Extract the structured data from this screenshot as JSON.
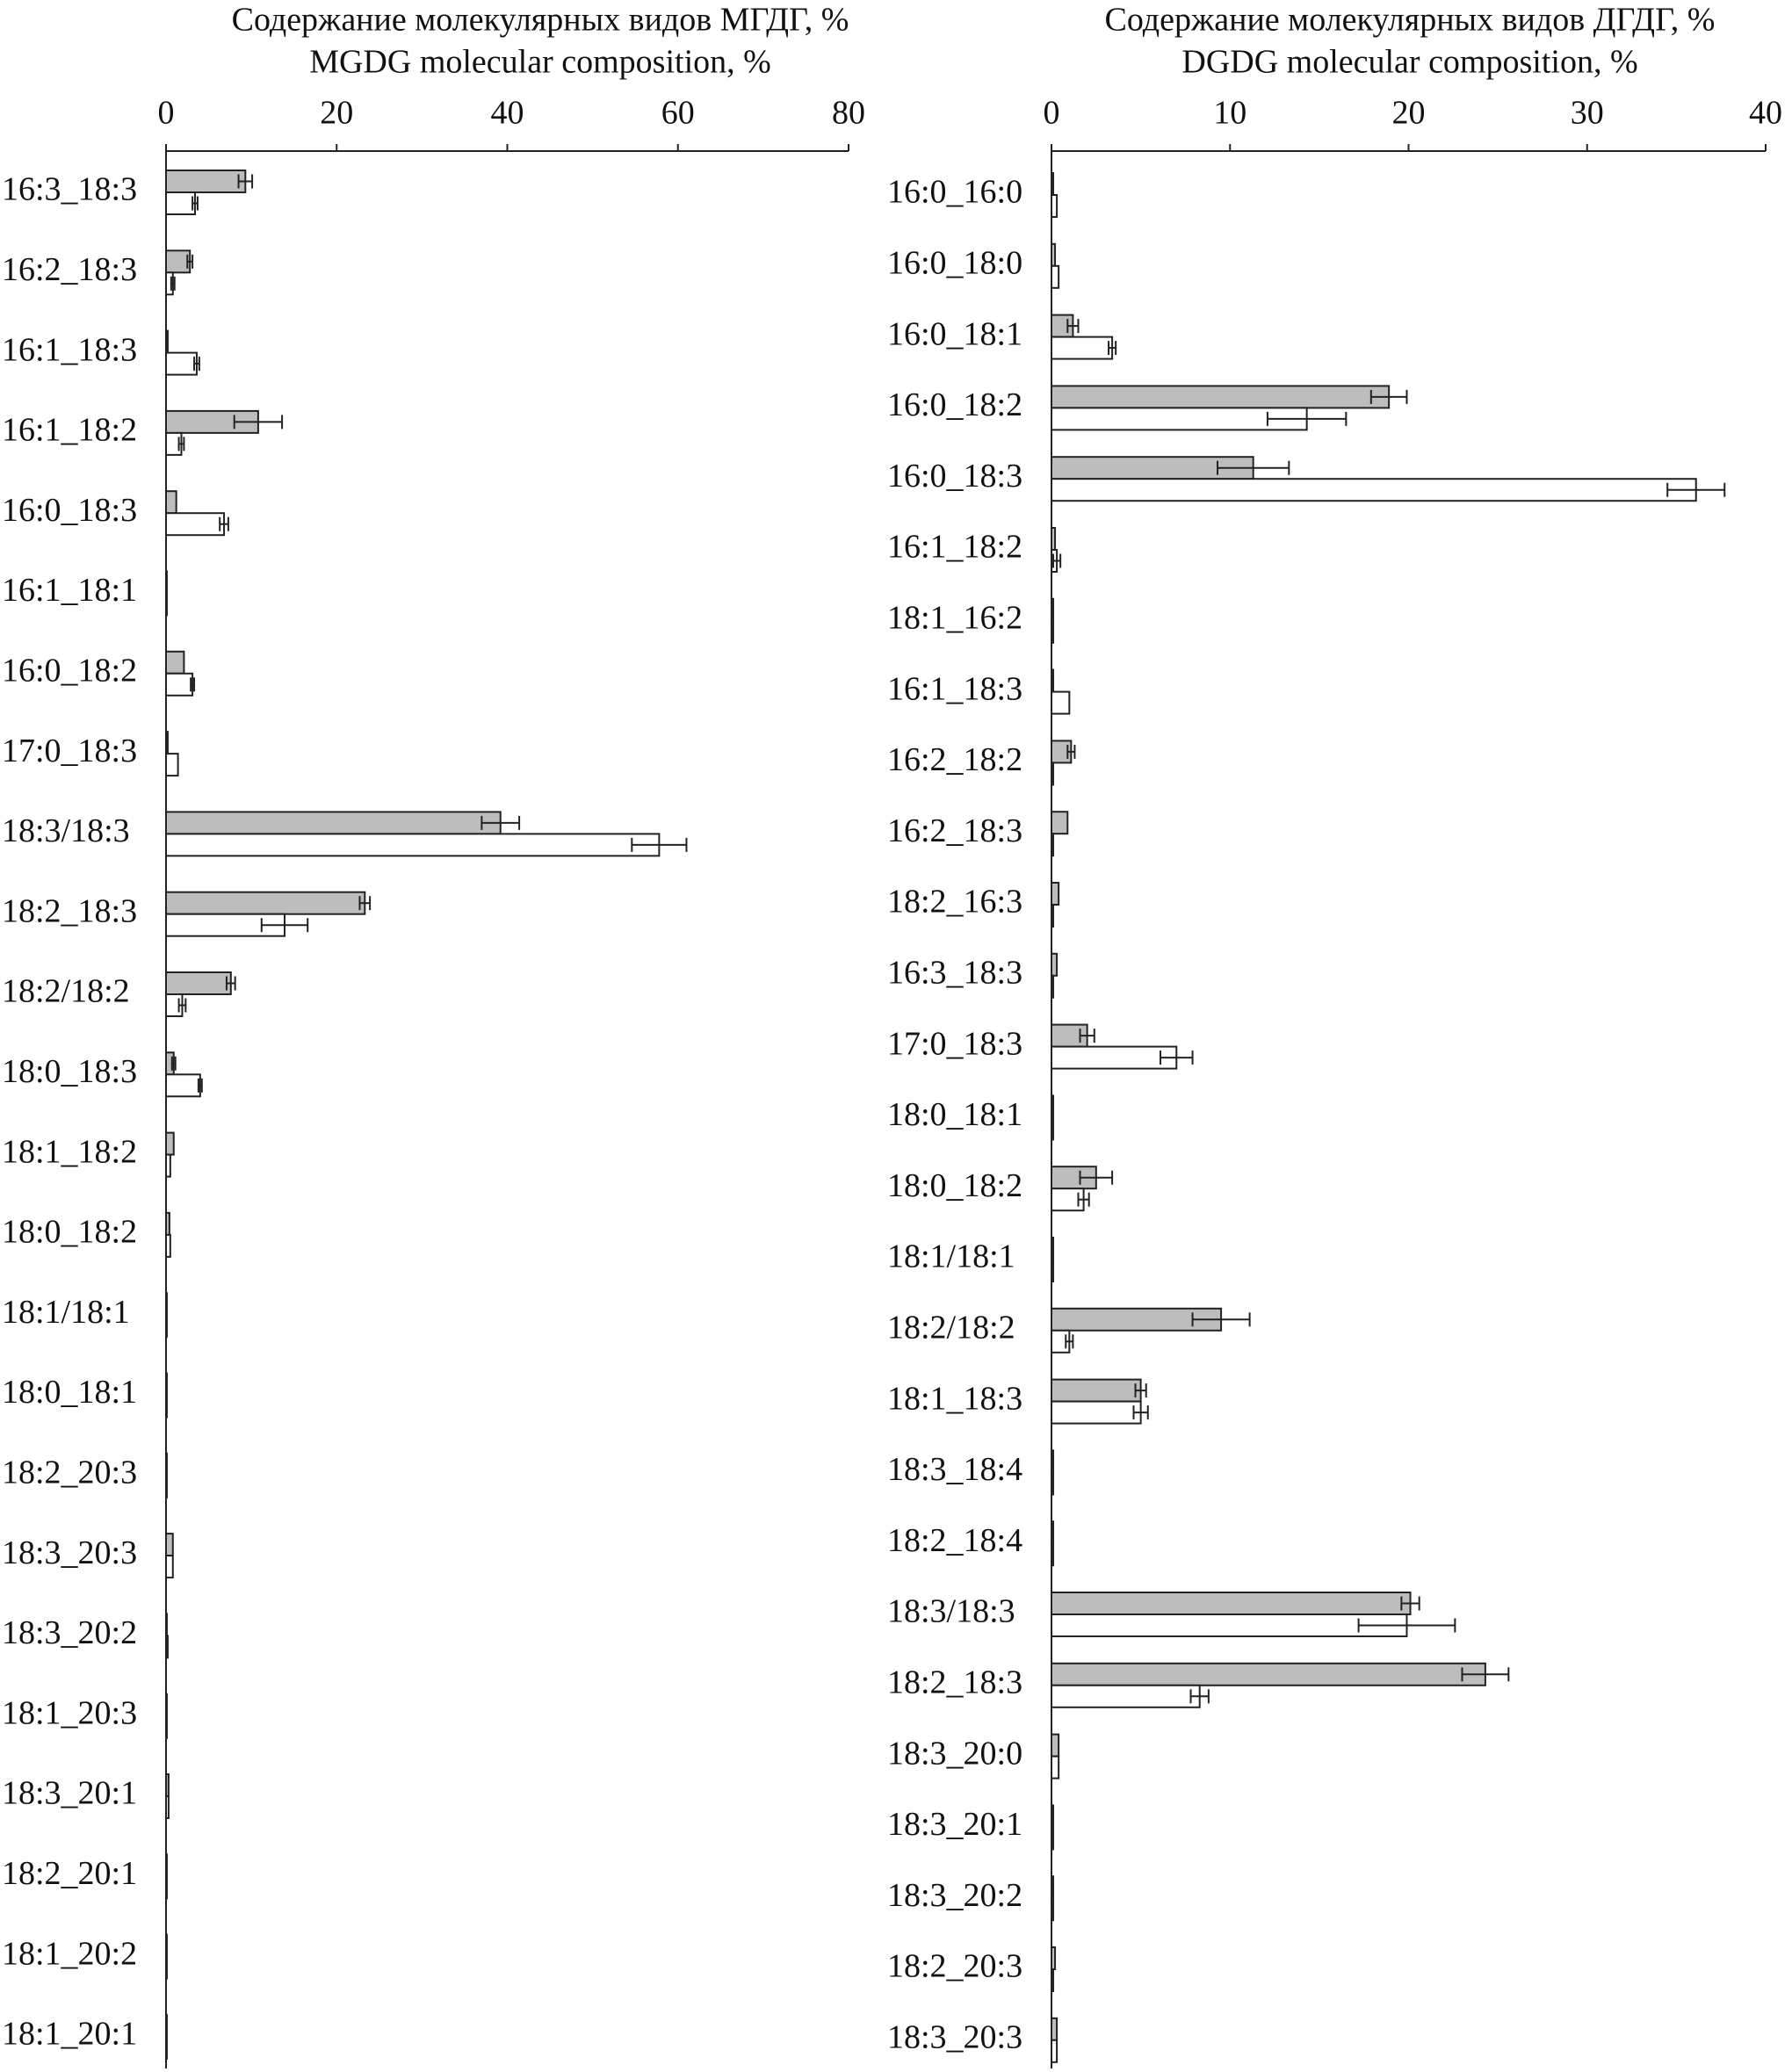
{
  "chart_data": [
    {
      "type": "bar",
      "orientation": "horizontal",
      "title": "Содержание  молекулярных видов МГДГ, %",
      "subtitle": "MGDG molecular composition, %",
      "categories": [
        "16:3_18:3",
        "16:2_18:3",
        "16:1_18:3",
        "16:1_18:2",
        "16:0_18:3",
        "16:1_18:1",
        "16:0_18:2",
        "17:0_18:3",
        "18:3/18:3",
        "18:2_18:3",
        "18:2/18:2",
        "18:0_18:3",
        "18:1_18:2",
        "18:0_18:2",
        "18:1/18:1",
        "18:0_18:1",
        "18:2_20:3",
        "18:3_20:3",
        "18:3_20:2",
        "18:1_20:3",
        "18:3_20:1",
        "18:2_20:1",
        "18:1_20:2",
        "18:1_20:1"
      ],
      "series": [
        {
          "color": "#bdbdbd",
          "values": [
            9.3,
            2.8,
            0.2,
            10.8,
            1.2,
            0.1,
            2.1,
            0.2,
            39.2,
            23.3,
            7.6,
            0.9,
            0.9,
            0.4,
            0.1,
            0.1,
            0.1,
            0.8,
            0.1,
            0.1,
            0.3,
            0.1,
            0.1,
            0.1
          ],
          "errors": [
            0.8,
            0.3,
            null,
            2.8,
            null,
            null,
            null,
            null,
            2.2,
            0.6,
            0.5,
            0.2,
            null,
            null,
            null,
            null,
            null,
            null,
            null,
            null,
            null,
            null,
            null,
            null
          ]
        },
        {
          "color": "#ffffff",
          "values": [
            3.4,
            0.8,
            3.6,
            1.8,
            6.8,
            0.1,
            3.1,
            1.4,
            57.8,
            13.9,
            1.9,
            4.0,
            0.5,
            0.5,
            0.1,
            0.1,
            0.1,
            0.8,
            0.2,
            0.1,
            0.3,
            0.1,
            0.1,
            0.1
          ],
          "errors": [
            0.3,
            0.2,
            0.3,
            0.3,
            0.5,
            null,
            0.2,
            null,
            3.2,
            2.7,
            0.4,
            0.2,
            null,
            null,
            null,
            null,
            null,
            null,
            null,
            null,
            null,
            null,
            null,
            null
          ]
        }
      ],
      "xlim": [
        0,
        80
      ],
      "xticks": [
        0,
        20,
        40,
        60,
        80
      ]
    },
    {
      "type": "bar",
      "orientation": "horizontal",
      "title": "Содержание  молекулярных видов ДГДГ, %",
      "subtitle": "DGDG molecular composition, %",
      "categories": [
        "16:0_16:0",
        "16:0_18:0",
        "16:0_18:1",
        "16:0_18:2",
        "16:0_18:3",
        "16:1_18:2",
        "18:1_16:2",
        "16:1_18:3",
        "16:2_18:2",
        "16:2_18:3",
        "18:2_16:3",
        "16:3_18:3",
        "17:0_18:3",
        "18:0_18:1",
        "18:0_18:2",
        "18:1/18:1",
        "18:2/18:2",
        "18:1_18:3",
        "18:3_18:4",
        "18:2_18:4",
        "18:3/18:3",
        "18:2_18:3",
        "18:3_20:0",
        "18:3_20:1",
        "18:3_20:2",
        "18:2_20:3",
        "18:3_20:3"
      ],
      "series": [
        {
          "color": "#bdbdbd",
          "values": [
            0.1,
            0.2,
            1.2,
            18.9,
            11.3,
            0.2,
            0.1,
            0.1,
            1.1,
            0.9,
            0.4,
            0.3,
            2.0,
            0.1,
            2.5,
            0.1,
            9.5,
            5.0,
            0.1,
            0.1,
            20.1,
            24.3,
            0.4,
            0.1,
            0.1,
            0.2,
            0.3
          ],
          "errors": [
            null,
            null,
            0.3,
            1.0,
            2.0,
            null,
            null,
            null,
            0.2,
            null,
            null,
            null,
            0.4,
            null,
            0.9,
            null,
            1.6,
            0.3,
            null,
            null,
            0.5,
            1.3,
            null,
            null,
            null,
            null,
            null
          ]
        },
        {
          "color": "#ffffff",
          "values": [
            0.3,
            0.4,
            3.4,
            14.3,
            36.1,
            0.3,
            0.1,
            1.0,
            0.1,
            0.1,
            0.1,
            0.1,
            7.0,
            0.1,
            1.8,
            0.1,
            1.0,
            5.0,
            0.1,
            0.1,
            19.9,
            8.3,
            0.4,
            0.1,
            0.1,
            0.1,
            0.3
          ],
          "errors": [
            null,
            null,
            0.2,
            2.2,
            1.6,
            0.2,
            null,
            null,
            null,
            null,
            null,
            null,
            0.9,
            null,
            0.3,
            null,
            0.2,
            0.4,
            null,
            null,
            2.7,
            0.5,
            null,
            null,
            null,
            null,
            null
          ]
        }
      ],
      "xlim": [
        0,
        40
      ],
      "xticks": [
        0,
        10,
        20,
        30,
        40
      ]
    }
  ]
}
